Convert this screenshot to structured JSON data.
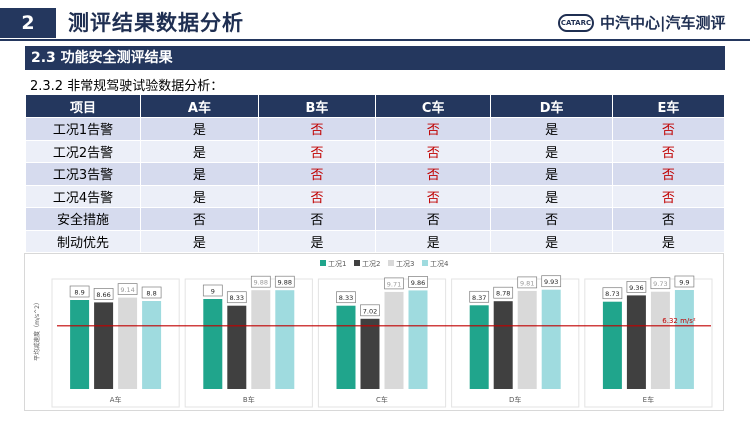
{
  "header": {
    "section_number": "2",
    "section_title": "测评结果数据分析",
    "logo_badge": "CATARC",
    "logo_text": "中汽中心|汽车测评"
  },
  "subsection": "2.3 功能安全测评结果",
  "subsubsection": "2.3.2 非常规驾驶试验数据分析：",
  "table": {
    "headers": [
      "项目",
      "A车",
      "B车",
      "C车",
      "D车",
      "E车"
    ],
    "rows": [
      {
        "item": "工况1告警",
        "values": [
          "是",
          "否",
          "否",
          "是",
          "否"
        ]
      },
      {
        "item": "工况2告警",
        "values": [
          "是",
          "否",
          "否",
          "是",
          "否"
        ]
      },
      {
        "item": "工况3告警",
        "values": [
          "是",
          "否",
          "否",
          "是",
          "否"
        ]
      },
      {
        "item": "工况4告警",
        "values": [
          "是",
          "否",
          "否",
          "是",
          "否"
        ]
      },
      {
        "item": "安全措施",
        "values": [
          "否",
          "否",
          "否",
          "否",
          "否"
        ]
      },
      {
        "item": "制动优先",
        "values": [
          "是",
          "是",
          "是",
          "是",
          "是"
        ]
      }
    ]
  },
  "chart_data": {
    "type": "bar",
    "categories": [
      "A车",
      "B车",
      "C车",
      "D车",
      "E车"
    ],
    "series": [
      {
        "name": "工况1",
        "values": [
          8.9,
          9,
          8.33,
          8.37,
          8.73
        ],
        "color": "#20a58c"
      },
      {
        "name": "工况2",
        "values": [
          8.66,
          8.33,
          7.02,
          8.78,
          9.36
        ],
        "color": "#404040"
      },
      {
        "name": "工况3",
        "values": [
          9.14,
          9.88,
          9.71,
          9.81,
          9.73
        ],
        "color": "#d9d9d9"
      },
      {
        "name": "工况4",
        "values": [
          8.8,
          9.88,
          9.86,
          9.93,
          9.9
        ],
        "color": "#9fdbdf"
      }
    ],
    "ylabel": "平均减速度（m/s^2）",
    "ylim": [
      0,
      11
    ],
    "reference_line": {
      "value": 6.32,
      "label": "6.32 m/s²",
      "color": "#c00000"
    },
    "legend_position": "top"
  }
}
